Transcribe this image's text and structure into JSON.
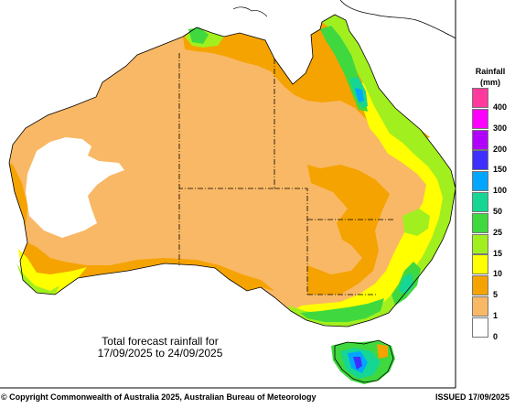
{
  "legend": {
    "title": "Rainfall",
    "unit": "(mm)",
    "items": [
      {
        "label": "400",
        "color": "#ff3a9c"
      },
      {
        "label": "300",
        "color": "#ff00ff"
      },
      {
        "label": "200",
        "color": "#b200ff"
      },
      {
        "label": "150",
        "color": "#3f2fff"
      },
      {
        "label": "100",
        "color": "#00a6ff"
      },
      {
        "label": "50",
        "color": "#16d693"
      },
      {
        "label": "25",
        "color": "#3fd83f"
      },
      {
        "label": "15",
        "color": "#a2ef1f"
      },
      {
        "label": "10",
        "color": "#ffff00"
      },
      {
        "label": "5",
        "color": "#f5a300"
      },
      {
        "label": "1",
        "color": "#f9b865"
      },
      {
        "label": "0",
        "color": "#ffffff"
      }
    ]
  },
  "caption": {
    "line1": "Total forecast rainfall for",
    "line2": "17/09/2025 to 24/09/2025"
  },
  "footer": {
    "copyright": "© Copyright Commonwealth of Australia 2025, Australian Bureau of Meteorology",
    "issued": "ISSUED 17/09/2025"
  }
}
